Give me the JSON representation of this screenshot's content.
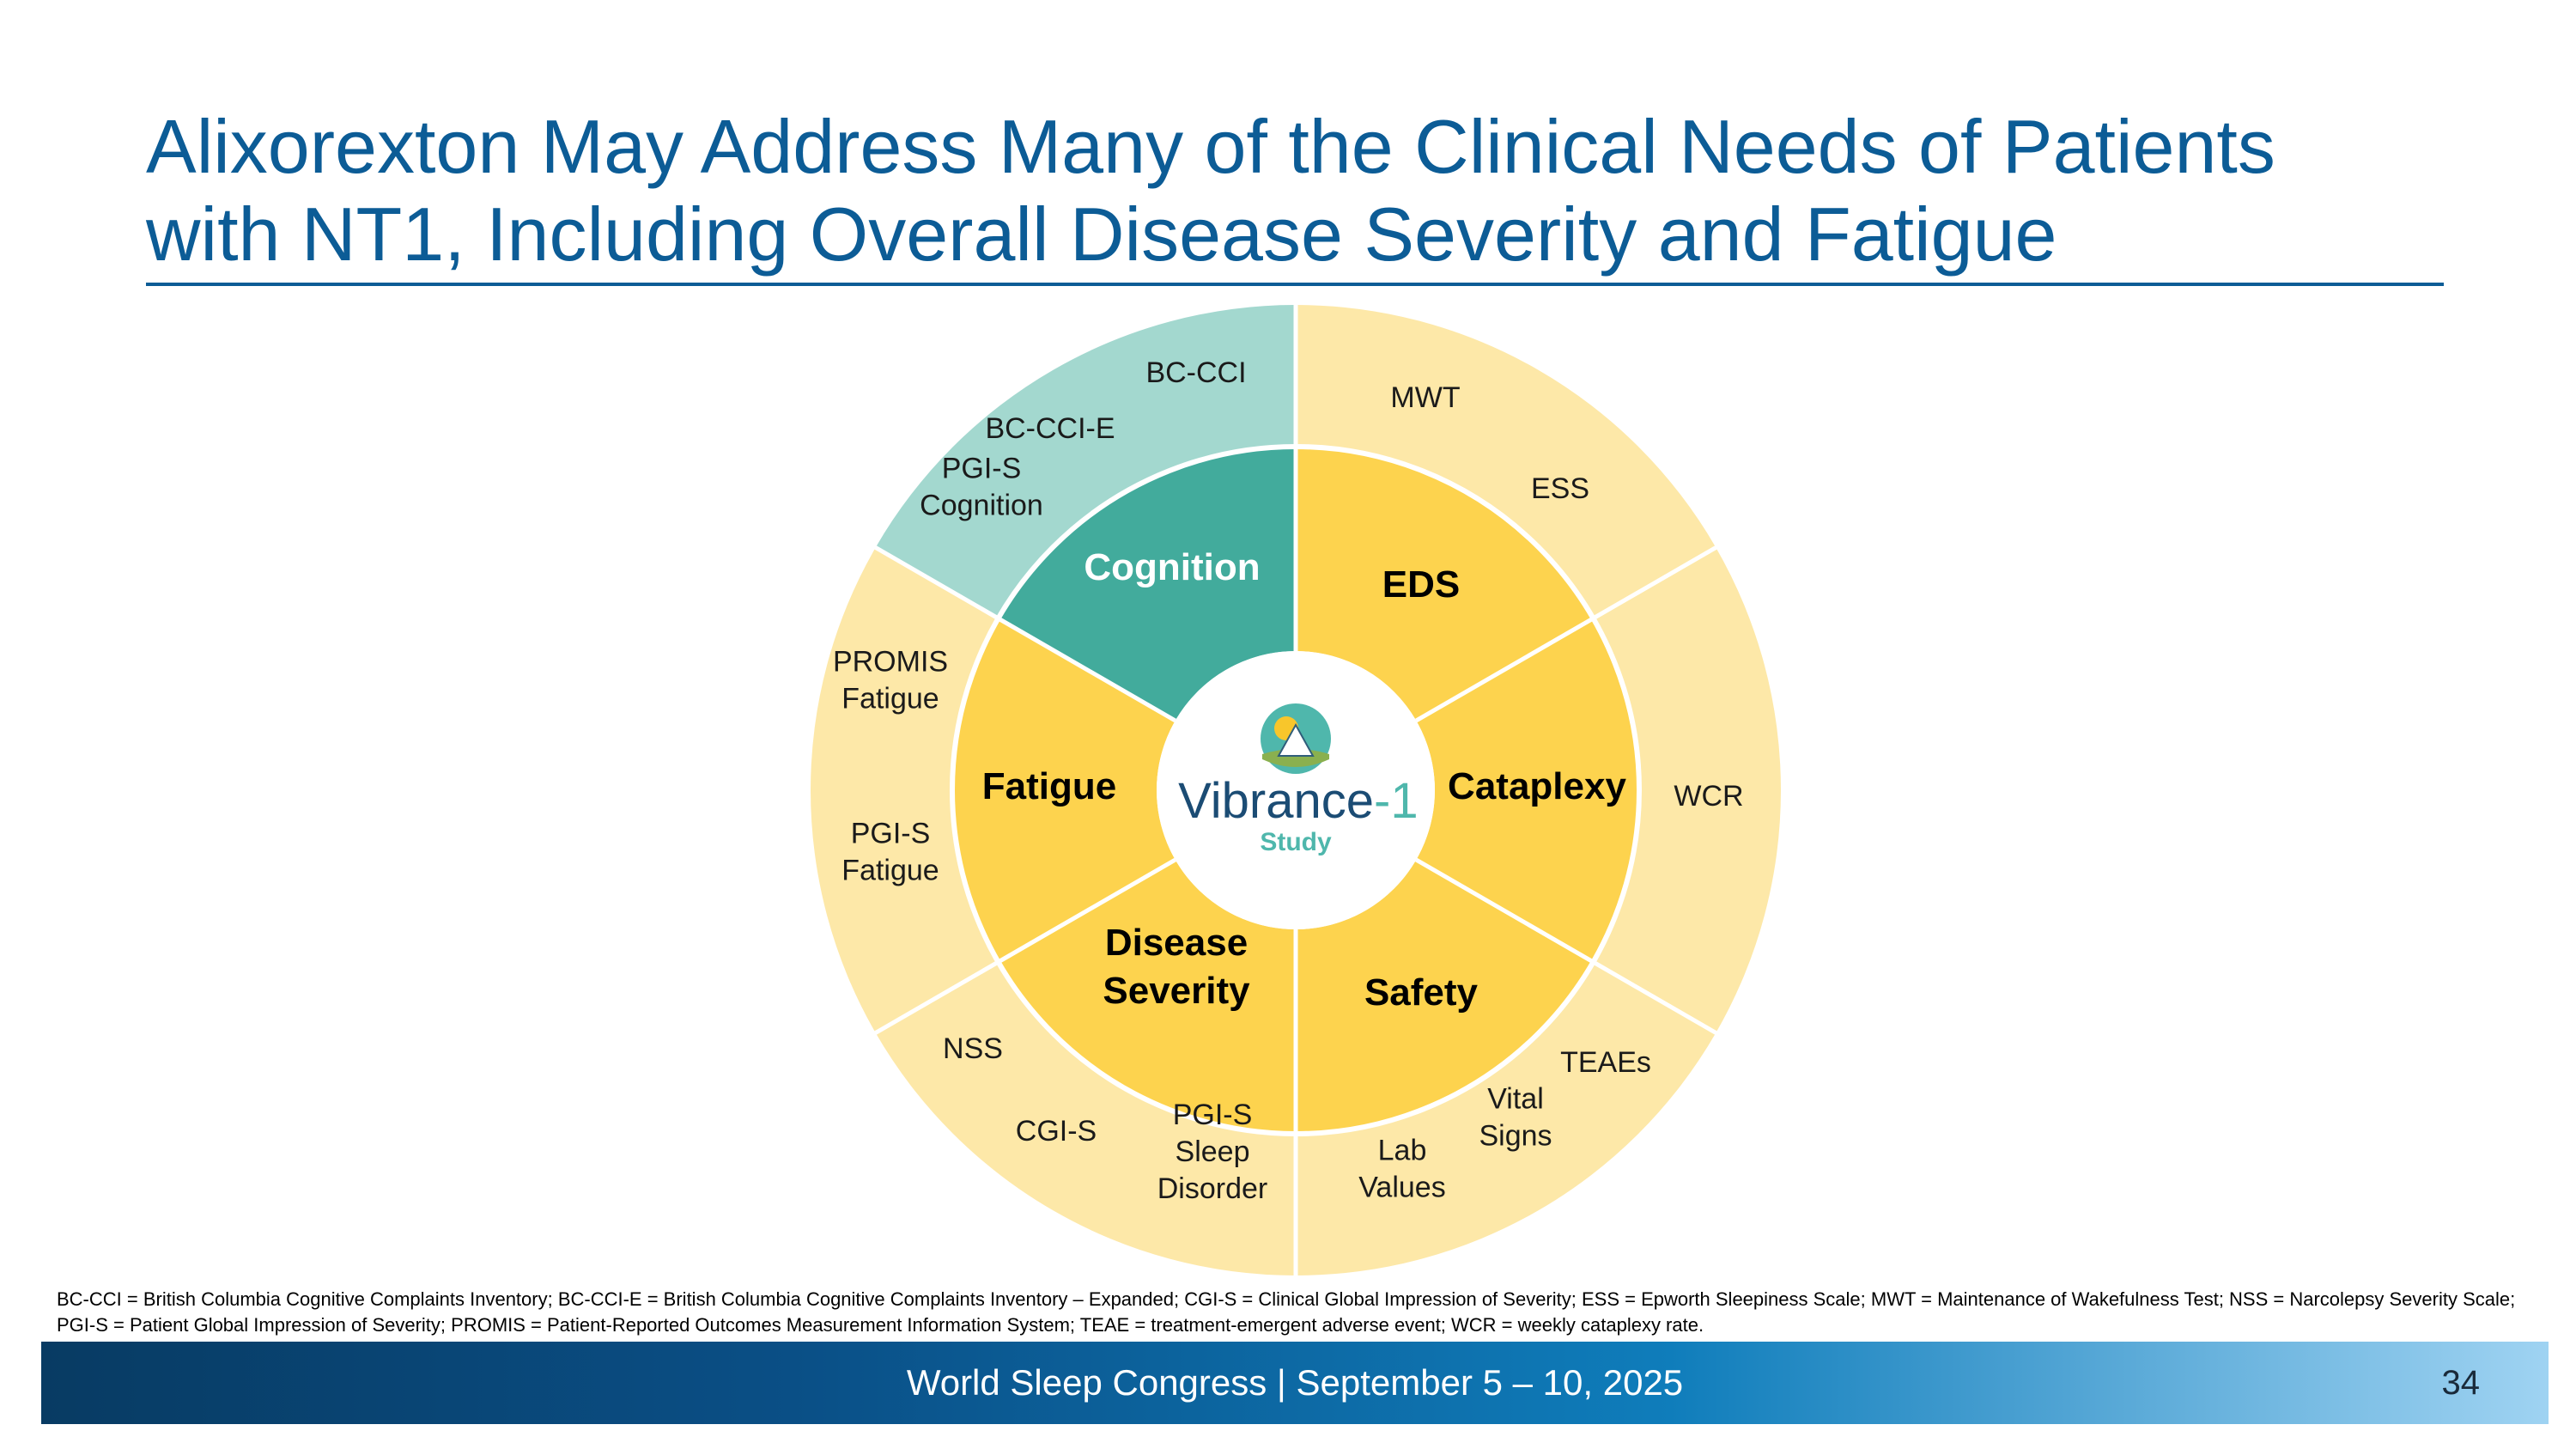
{
  "slide": {
    "title_line1": "Alixorexton May Address Many of the Clinical Needs of Patients",
    "title_line2": "with NT1, Including Overall Disease Severity and Fatigue"
  },
  "wheel": {
    "center": {
      "brand": "Vibrance-1",
      "brand_main": "Vibrance",
      "brand_suffix": "-1",
      "subtitle": "Study"
    },
    "colors": {
      "cognition_inner": "#42ab9c",
      "cognition_outer": "#a3d8cf",
      "domain_inner": "#fdd34e",
      "domain_outer": "#fde8a8",
      "brand_navy": "#1b4c74",
      "brand_teal": "#4fb7ac"
    },
    "segments": [
      {
        "key": "eds",
        "label": [
          "EDS"
        ],
        "measures": [
          [
            "MWT"
          ],
          [
            "ESS"
          ]
        ]
      },
      {
        "key": "cataplexy",
        "label": [
          "Cataplexy"
        ],
        "measures": [
          [
            "WCR"
          ]
        ]
      },
      {
        "key": "safety",
        "label": [
          "Safety"
        ],
        "measures": [
          [
            "TEAEs"
          ],
          [
            "Vital",
            "Signs"
          ],
          [
            "Lab",
            "Values"
          ]
        ]
      },
      {
        "key": "disease-severity",
        "label": [
          "Disease",
          "Severity"
        ],
        "measures": [
          [
            "PGI-S",
            "Sleep",
            "Disorder"
          ],
          [
            "CGI-S"
          ],
          [
            "NSS"
          ]
        ]
      },
      {
        "key": "fatigue",
        "label": [
          "Fatigue"
        ],
        "measures": [
          [
            "PGI-S",
            "Fatigue"
          ],
          [
            "PROMIS",
            "Fatigue"
          ]
        ]
      },
      {
        "key": "cognition",
        "label": [
          "Cognition"
        ],
        "measures": [
          [
            "PGI-S",
            "Cognition"
          ],
          [
            "BC-CCI-E"
          ],
          [
            "BC-CCI"
          ]
        ]
      }
    ]
  },
  "footnote": "BC-CCI = British Columbia Cognitive Complaints Inventory; BC-CCI-E = British Columbia Cognitive Complaints Inventory – Expanded; CGI-S = Clinical Global Impression of Severity; ESS = Epworth Sleepiness Scale; MWT = Maintenance of Wakefulness Test; NSS = Narcolepsy Severity Scale; PGI-S = Patient Global Impression of Severity; PROMIS = Patient-Reported Outcomes Measurement Information System; TEAE = treatment-emergent adverse event; WCR = weekly cataplexy rate.",
  "footer": {
    "event": "World Sleep Congress | September 5 – 10, 2025",
    "page_number": "34"
  }
}
